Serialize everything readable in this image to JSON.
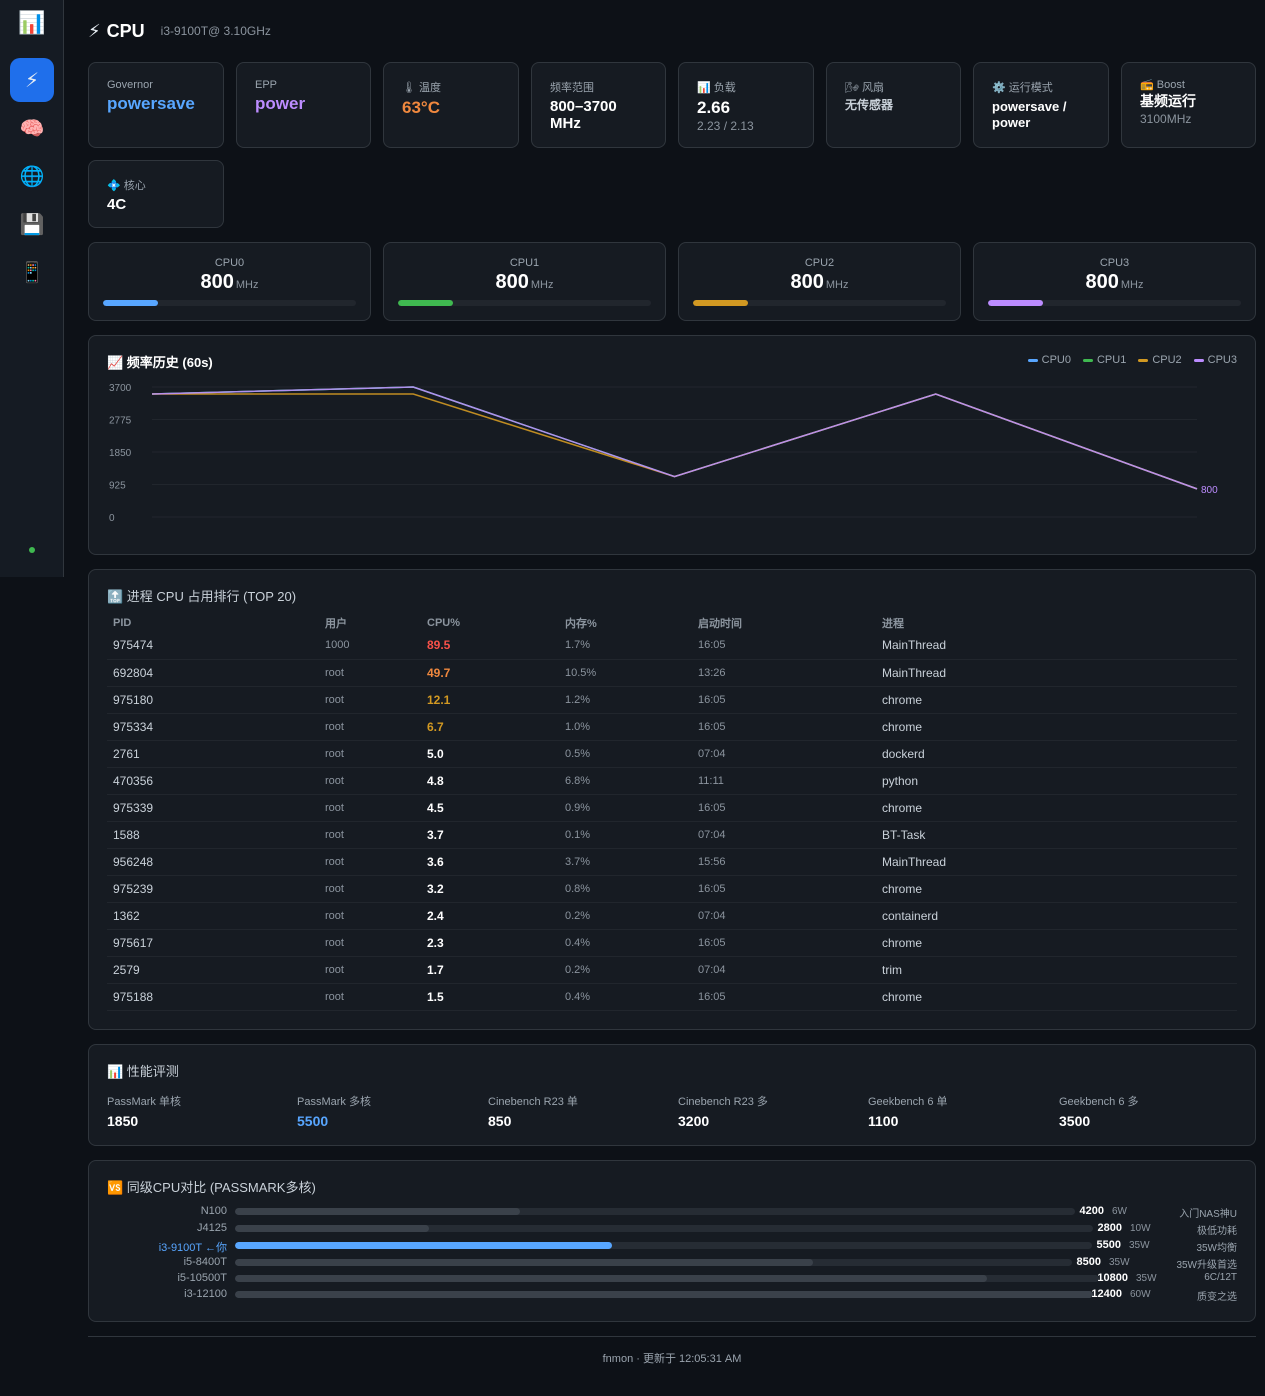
{
  "sidebar": {
    "logo_icon": "📊",
    "items": [
      {
        "icon": "⚡",
        "name": "cpu"
      },
      {
        "icon": "🧠",
        "name": "memory"
      },
      {
        "icon": "🌐",
        "name": "network"
      },
      {
        "icon": "💾",
        "name": "disk"
      },
      {
        "icon": "📱",
        "name": "device"
      }
    ]
  },
  "header": {
    "icon": "⚡",
    "title": "CPU",
    "model": "i3-9100T@ 3.10GHz"
  },
  "stats": {
    "governor": {
      "label": "Governor",
      "value": "powersave",
      "color": "#58a6ff"
    },
    "epp": {
      "label": "EPP",
      "value": "power",
      "color": "#bc8cff"
    },
    "temp": {
      "label": "🌡 温度",
      "value": "63°C",
      "color": "#f0883e"
    },
    "freq_range": {
      "label": "频率范围",
      "value": "800–3700 MHz"
    },
    "load": {
      "label": "📊 负载",
      "value": "2.66",
      "sub": "2.23 / 2.13"
    },
    "fan": {
      "label": "🌬 风扇",
      "value": "无传感器"
    },
    "mode": {
      "label": "⚙️ 运行模式",
      "value": "powersave / power"
    },
    "boost": {
      "label": "📻 Boost",
      "value": "基频运行",
      "sub": "3100MHz"
    },
    "cores": {
      "label": "💠 核心",
      "value": "4C"
    }
  },
  "cores": [
    {
      "name": "CPU0",
      "freq": "800",
      "unit": "MHz",
      "fill": 0.216,
      "color": "#58a6ff"
    },
    {
      "name": "CPU1",
      "freq": "800",
      "unit": "MHz",
      "fill": 0.216,
      "color": "#3fb950"
    },
    {
      "name": "CPU2",
      "freq": "800",
      "unit": "MHz",
      "fill": 0.216,
      "color": "#d29922"
    },
    {
      "name": "CPU3",
      "freq": "800",
      "unit": "MHz",
      "fill": 0.216,
      "color": "#bc8cff"
    }
  ],
  "chart_data": {
    "type": "line",
    "title": "📈 频率历史 (60s)",
    "ylim": [
      0,
      3700
    ],
    "yticks": [
      "3700",
      "2775",
      "1850",
      "925",
      "0"
    ],
    "x": [
      0,
      1,
      2,
      3,
      4
    ],
    "series": [
      {
        "name": "CPU0",
        "color": "#58a6ff",
        "values": [
          3500,
          3700,
          1150,
          3500,
          800
        ]
      },
      {
        "name": "CPU1",
        "color": "#3fb950",
        "values": [
          3500,
          3700,
          1150,
          3500,
          800
        ]
      },
      {
        "name": "CPU2",
        "color": "#d29922",
        "values": [
          3500,
          3500,
          1150,
          3500,
          800
        ]
      },
      {
        "name": "CPU3",
        "color": "#bc8cff",
        "values": [
          3500,
          3700,
          1150,
          3500,
          800
        ]
      }
    ],
    "end_label": "800"
  },
  "process": {
    "title": "🔝 进程 CPU 占用排行 (TOP 20)",
    "columns": [
      "PID",
      "用户",
      "CPU%",
      "内存%",
      "启动时间",
      "进程"
    ],
    "rows": [
      {
        "pid": "975474",
        "user": "1000",
        "cpu": "89.5",
        "mem": "1.7%",
        "start": "16:05",
        "cmd": "MainThread",
        "color": "#f85149"
      },
      {
        "pid": "692804",
        "user": "root",
        "cpu": "49.7",
        "mem": "10.5%",
        "start": "13:26",
        "cmd": "MainThread",
        "color": "#f0883e"
      },
      {
        "pid": "975180",
        "user": "root",
        "cpu": "12.1",
        "mem": "1.2%",
        "start": "16:05",
        "cmd": "chrome",
        "color": "#d29922"
      },
      {
        "pid": "975334",
        "user": "root",
        "cpu": "6.7",
        "mem": "1.0%",
        "start": "16:05",
        "cmd": "chrome",
        "color": "#d29922"
      },
      {
        "pid": "2761",
        "user": "root",
        "cpu": "5.0",
        "mem": "0.5%",
        "start": "07:04",
        "cmd": "dockerd",
        "color": "#ffffff"
      },
      {
        "pid": "470356",
        "user": "root",
        "cpu": "4.8",
        "mem": "6.8%",
        "start": "11:11",
        "cmd": "python",
        "color": "#ffffff"
      },
      {
        "pid": "975339",
        "user": "root",
        "cpu": "4.5",
        "mem": "0.9%",
        "start": "16:05",
        "cmd": "chrome",
        "color": "#ffffff"
      },
      {
        "pid": "1588",
        "user": "root",
        "cpu": "3.7",
        "mem": "0.1%",
        "start": "07:04",
        "cmd": "BT-Task",
        "color": "#ffffff"
      },
      {
        "pid": "956248",
        "user": "root",
        "cpu": "3.6",
        "mem": "3.7%",
        "start": "15:56",
        "cmd": "MainThread",
        "color": "#ffffff"
      },
      {
        "pid": "975239",
        "user": "root",
        "cpu": "3.2",
        "mem": "0.8%",
        "start": "16:05",
        "cmd": "chrome",
        "color": "#ffffff"
      },
      {
        "pid": "1362",
        "user": "root",
        "cpu": "2.4",
        "mem": "0.2%",
        "start": "07:04",
        "cmd": "containerd",
        "color": "#ffffff"
      },
      {
        "pid": "975617",
        "user": "root",
        "cpu": "2.3",
        "mem": "0.4%",
        "start": "16:05",
        "cmd": "chrome",
        "color": "#ffffff"
      },
      {
        "pid": "2579",
        "user": "root",
        "cpu": "1.7",
        "mem": "0.2%",
        "start": "07:04",
        "cmd": "trim",
        "color": "#ffffff"
      },
      {
        "pid": "975188",
        "user": "root",
        "cpu": "1.5",
        "mem": "0.4%",
        "start": "16:05",
        "cmd": "chrome",
        "color": "#ffffff"
      }
    ]
  },
  "benchmark": {
    "title": "📊 性能评测",
    "items": [
      {
        "label": "PassMark 单核",
        "value": "1850",
        "color": "#ffffff"
      },
      {
        "label": "PassMark 多核",
        "value": "5500",
        "color": "#58a6ff"
      },
      {
        "label": "Cinebench R23 单",
        "value": "850",
        "color": "#ffffff"
      },
      {
        "label": "Cinebench R23 多",
        "value": "3200",
        "color": "#ffffff"
      },
      {
        "label": "Geekbench 6 单",
        "value": "1100",
        "color": "#ffffff"
      },
      {
        "label": "Geekbench 6 多",
        "value": "3500",
        "color": "#ffffff"
      }
    ]
  },
  "compare": {
    "title": "🆚 同级CPU对比 (PASSMARK多核)",
    "items": [
      {
        "name": "N100",
        "score": "4200",
        "tdp": "6W",
        "note": "入门NAS神U",
        "fill": 0.339,
        "me": false
      },
      {
        "name": "J4125",
        "score": "2800",
        "tdp": "10W",
        "note": "极低功耗",
        "fill": 0.226,
        "me": false
      },
      {
        "name": "i3-9100T ←你",
        "score": "5500",
        "tdp": "35W",
        "note": "35W均衡",
        "fill": 0.44,
        "me": true
      },
      {
        "name": "i5-8400T",
        "score": "8500",
        "tdp": "35W",
        "note": "35W升级首选",
        "fill": 0.69,
        "me": false
      },
      {
        "name": "i5-10500T",
        "score": "10800",
        "tdp": "35W",
        "note": "6C/12T",
        "fill": 0.87,
        "me": false
      },
      {
        "name": "i3-12100",
        "score": "12400",
        "tdp": "60W",
        "note": "质变之选",
        "fill": 1.0,
        "me": false
      }
    ]
  },
  "footer": "fnmon · 更新于 12:05:31 AM"
}
